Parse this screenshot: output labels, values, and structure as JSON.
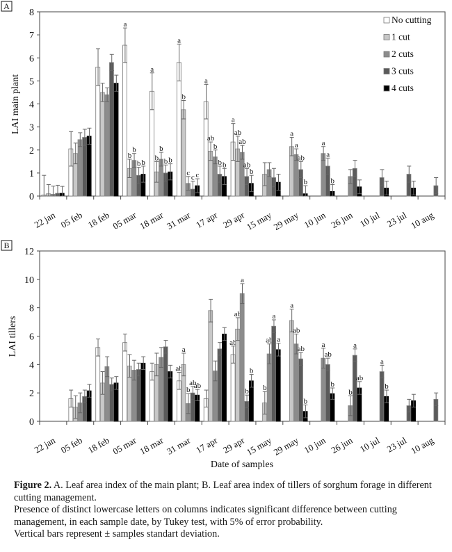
{
  "colors": {
    "No cutting": "#ffffff",
    "1 cut": "#c8c8c8",
    "2 cuts": "#8c8c8c",
    "3 cuts": "#5a5a5a",
    "4 cuts": "#000000"
  },
  "caption": {
    "figure_label": "Figure 2.",
    "line1": " A. Leaf area index of the main plant; B. Leaf area index of tillers of sorghum forage in different cutting management.",
    "line2": "Presence of distinct lowercase letters on columns indicates significant difference between cutting management, in each sample date, by Tukey test, with 5% of error probability.",
    "line3": "Vertical bars represent ± samples standart deviation."
  },
  "chart_data": [
    {
      "panel": "A",
      "type": "bar",
      "ylabel": "LAI main plant",
      "xlabel": "",
      "ylim": [
        0,
        8
      ],
      "yticks": [
        0,
        1,
        2,
        3,
        4,
        5,
        6,
        7,
        8
      ],
      "legend": [
        "No cutting",
        "1 cut",
        "2 cuts",
        "3 cuts",
        "4 cuts"
      ],
      "legend_position": "top-right",
      "categories": [
        "22 jan",
        "05 feb",
        "18 feb",
        "05 mar",
        "18 mar",
        "31 mar",
        "17 apr",
        "29 apr",
        "15 may",
        "29 may",
        "10 jun",
        "26 jun",
        "10 jul",
        "23 jul",
        "10 aug"
      ],
      "series": [
        {
          "name": "No cutting",
          "values": [
            0.05,
            2.05,
            5.6,
            6.55,
            4.55,
            5.8,
            4.1,
            2.35,
            null,
            null,
            null,
            null,
            null,
            null,
            null
          ],
          "err": [
            0.85,
            0.75,
            0.8,
            0.75,
            0.8,
            0.8,
            0.75,
            0.8,
            null,
            null,
            null,
            null,
            null,
            null,
            null
          ],
          "sig": [
            "",
            "",
            "",
            "a",
            "a",
            "a",
            "a",
            "a",
            "",
            "",
            "",
            "",
            "",
            "",
            ""
          ]
        },
        {
          "name": "1 cut",
          "values": [
            0.1,
            1.85,
            4.5,
            1.2,
            1.05,
            3.75,
            1.95,
            2.05,
            0.95,
            2.15,
            null,
            null,
            null,
            null,
            null
          ],
          "err": [
            0.4,
            0.45,
            0.4,
            0.4,
            0.45,
            0.4,
            0.4,
            0.55,
            0.5,
            0.4,
            null,
            null,
            null,
            null,
            null
          ],
          "sig": [
            "",
            "",
            "",
            "b",
            "b",
            "b",
            "ab",
            "ab",
            "",
            "a",
            "",
            "",
            "",
            "",
            ""
          ]
        },
        {
          "name": "2 cuts",
          "values": [
            0.08,
            2.45,
            4.4,
            1.55,
            1.6,
            0.55,
            1.7,
            1.9,
            1.15,
            1.8,
            1.85,
            0.85,
            null,
            null,
            null
          ],
          "err": [
            0.35,
            0.3,
            0.3,
            0.3,
            0.3,
            0.3,
            0.3,
            0.3,
            0.3,
            0.25,
            0.3,
            0.3,
            null,
            null,
            null
          ],
          "sig": [
            "",
            "",
            "",
            "b",
            "b",
            "c",
            "b",
            "ab",
            "",
            "a",
            "a",
            "",
            "",
            "",
            ""
          ]
        },
        {
          "name": "3 cuts",
          "values": [
            0.12,
            2.55,
            5.8,
            0.9,
            1.0,
            0.3,
            0.95,
            0.85,
            0.8,
            1.15,
            1.3,
            1.2,
            0.8,
            0.95,
            0.45
          ],
          "err": [
            0.35,
            0.35,
            0.35,
            0.35,
            0.35,
            0.35,
            0.35,
            0.35,
            0.4,
            0.35,
            0.35,
            0.35,
            0.35,
            0.35,
            0.35
          ],
          "sig": [
            "",
            "",
            "",
            "b",
            "b",
            "c",
            "b",
            "ab",
            "",
            "ab",
            "a",
            "",
            "",
            "",
            ""
          ]
        },
        {
          "name": "4 cuts",
          "values": [
            0.12,
            2.6,
            4.9,
            0.95,
            1.05,
            0.45,
            0.85,
            0.55,
            0.6,
            0.1,
            0.2,
            0.4,
            0.35,
            0.35,
            null
          ],
          "err": [
            0.3,
            0.35,
            0.35,
            0.35,
            0.35,
            0.3,
            0.35,
            0.35,
            0.35,
            0.35,
            0.3,
            0.3,
            0.3,
            0.3,
            null
          ],
          "sig": [
            "",
            "",
            "",
            "b",
            "b",
            "c",
            "b",
            "b",
            "",
            "b",
            "b",
            "",
            "",
            "",
            ""
          ]
        }
      ]
    },
    {
      "panel": "B",
      "type": "bar",
      "ylabel": "LAI tillers",
      "xlabel": "Date of samples",
      "ylim": [
        0,
        12
      ],
      "yticks": [
        0,
        2,
        4,
        6,
        8,
        10,
        12
      ],
      "legend": [
        "No cutting",
        "1 cut",
        "2 cuts",
        "3 cuts",
        "4 cuts"
      ],
      "categories": [
        "22 jan",
        "05 feb",
        "18 feb",
        "05 mar",
        "18 mar",
        "31 mar",
        "17 apr",
        "29 apr",
        "15 may",
        "29 may",
        "10 jun",
        "26 jun",
        "10 jul",
        "23 jul",
        "10 aug"
      ],
      "series": [
        {
          "name": "No cutting",
          "values": [
            null,
            1.6,
            5.2,
            5.55,
            3.5,
            2.85,
            1.6,
            4.7,
            null,
            null,
            null,
            null,
            null,
            null,
            null
          ],
          "err": [
            null,
            0.6,
            0.6,
            0.6,
            0.6,
            0.6,
            0.6,
            0.6,
            null,
            null,
            null,
            null,
            null,
            null,
            null
          ],
          "sig": [
            "",
            "",
            "",
            "",
            "",
            "ab",
            "",
            "ab",
            "",
            "",
            "",
            "",
            "",
            "",
            ""
          ]
        },
        {
          "name": "1 cut",
          "values": [
            null,
            1.0,
            2.7,
            3.9,
            4.0,
            4.0,
            7.8,
            6.5,
            1.3,
            7.1,
            null,
            null,
            null,
            null,
            null
          ],
          "err": [
            null,
            0.8,
            0.8,
            0.8,
            0.8,
            0.8,
            0.8,
            0.8,
            0.8,
            0.8,
            null,
            null,
            null,
            null,
            null
          ],
          "sig": [
            "",
            "",
            "",
            "",
            "",
            "a",
            "",
            "ab",
            "b",
            "a",
            "",
            "",
            "",
            "",
            ""
          ]
        },
        {
          "name": "2 cuts",
          "values": [
            null,
            1.3,
            3.85,
            3.6,
            4.5,
            1.25,
            3.55,
            9.0,
            4.75,
            5.45,
            4.45,
            1.1,
            null,
            null,
            null
          ],
          "err": [
            null,
            0.7,
            0.7,
            0.7,
            0.7,
            0.7,
            0.7,
            0.7,
            0.7,
            0.7,
            0.7,
            0.7,
            null,
            null,
            null
          ],
          "sig": [
            "",
            "",
            "",
            "",
            "",
            "b",
            "",
            "a",
            "ab",
            "ab",
            "a",
            "b",
            "",
            "",
            ""
          ]
        },
        {
          "name": "3 cuts",
          "values": [
            null,
            1.75,
            2.6,
            3.65,
            5.25,
            2.0,
            5.1,
            1.4,
            6.7,
            4.4,
            4.0,
            4.65,
            3.5,
            1.1,
            1.55
          ],
          "err": [
            null,
            0.45,
            0.45,
            0.45,
            0.45,
            0.45,
            0.45,
            0.45,
            0.45,
            0.45,
            0.45,
            0.45,
            0.45,
            0.45,
            0.45
          ],
          "sig": [
            "",
            "",
            "",
            "",
            "",
            "ab",
            "",
            "b",
            "a",
            "ab",
            "ab",
            "a",
            "a",
            "",
            ""
          ]
        },
        {
          "name": "4 cuts",
          "values": [
            null,
            2.15,
            2.7,
            4.1,
            3.5,
            1.85,
            6.15,
            2.85,
            5.05,
            0.7,
            1.95,
            2.35,
            1.75,
            1.45,
            null
          ],
          "err": [
            null,
            0.45,
            0.45,
            0.45,
            0.45,
            0.4,
            0.45,
            0.45,
            0.45,
            0.45,
            0.4,
            0.45,
            0.45,
            0.45,
            null
          ],
          "sig": [
            "",
            "",
            "",
            "",
            "",
            "ab",
            "",
            "b",
            "a",
            "b",
            "b",
            "ab",
            "b",
            "",
            ""
          ]
        }
      ]
    }
  ]
}
